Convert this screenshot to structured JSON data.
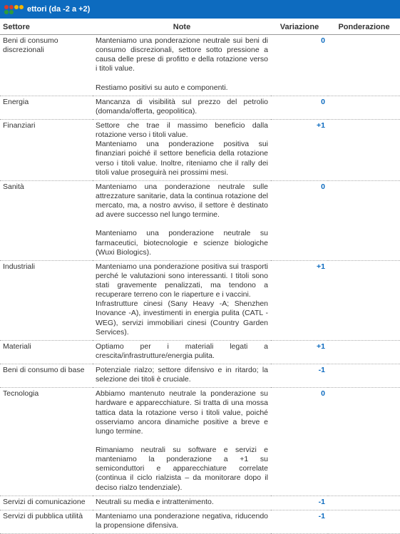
{
  "header": {
    "title": "ettori (da -2 a +2)",
    "bg_color": "#0d6bbf",
    "text_color": "#ffffff"
  },
  "table": {
    "columns": [
      "Settore",
      "Note",
      "Variazione",
      "Ponderazione"
    ],
    "rows": [
      {
        "settore": "Beni di consumo discrezionali",
        "note": "Manteniamo una ponderazione neutrale sui beni di consumo discrezionali, settore sotto pressione a causa delle prese di profitto e della rotazione verso i titoli value.\n\nRestiamo positivi su auto e componenti.",
        "variazione": "0",
        "ponderazione": ""
      },
      {
        "settore": "Energia",
        "note": "Mancanza di visibilità sul prezzo del petrolio (domanda/offerta, geopolitica).",
        "variazione": "0",
        "ponderazione": ""
      },
      {
        "settore": "Finanziari",
        "note": "Settore che trae il massimo beneficio dalla rotazione verso i titoli value.\nManteniamo una ponderazione positiva sui finanziari poiché il settore beneficia della rotazione verso i titoli value. Inoltre, riteniamo che il rally dei titoli value proseguirà nei prossimi mesi.",
        "variazione": "+1",
        "ponderazione": ""
      },
      {
        "settore": "Sanità",
        "note": "Manteniamo una ponderazione neutrale sulle attrezzature sanitarie, data la continua rotazione del mercato, ma, a nostro avviso, il settore è destinato ad avere successo nel lungo termine.\n\nManteniamo una ponderazione neutrale su farmaceutici, biotecnologie e scienze biologiche (Wuxi Biologics).",
        "variazione": "0",
        "ponderazione": ""
      },
      {
        "settore": "Industriali",
        "note": "Manteniamo una ponderazione positiva sui trasporti perché le valutazioni sono interessanti. I titoli sono stati gravemente penalizzati, ma tendono a recuperare terreno con le riaperture e i vaccini.\nInfrastrutture cinesi (Sany Heavy -A; Shenzhen Inovance -A), investimenti in energia pulita (CATL - WEG), servizi immobiliari cinesi (Country Garden Services).",
        "variazione": "+1",
        "ponderazione": ""
      },
      {
        "settore": "Materiali",
        "note": "Optiamo per i materiali legati a crescita/infrastrutture/energia pulita.",
        "variazione": "+1",
        "ponderazione": ""
      },
      {
        "settore": "Beni di consumo di base",
        "note": "Potenziale rialzo; settore difensivo e in ritardo; la selezione dei titoli è cruciale.",
        "variazione": "-1",
        "ponderazione": ""
      },
      {
        "settore": "Tecnologia",
        "note": "Abbiamo mantenuto neutrale la ponderazione su hardware e apparecchiature. Si tratta di una mossa tattica data la rotazione verso i titoli value, poiché osserviamo ancora dinamiche positive a breve e lungo termine.\n\nRimaniamo neutrali su software e servizi e manteniamo la ponderazione a +1 su semiconduttori e apparecchiature correlate (continua il ciclo rialzista – da monitorare dopo il deciso rialzo tendenziale).",
        "variazione": "0",
        "ponderazione": ""
      },
      {
        "settore": "Servizi di comunicazione",
        "note": "Neutrali su media e intrattenimento.",
        "variazione": "-1",
        "ponderazione": ""
      },
      {
        "settore": "Servizi di pubblica utilità",
        "note": "Manteniamo una ponderazione negativa, riducendo la propensione difensiva.",
        "variazione": "-1",
        "ponderazione": ""
      }
    ]
  }
}
